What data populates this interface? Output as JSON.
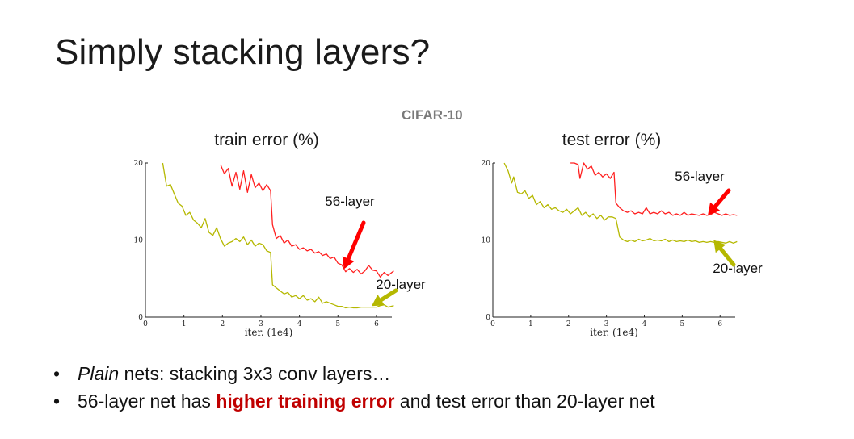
{
  "slide": {
    "title": "Simply stacking layers?",
    "dataset_label": "CIFAR-10",
    "bullets": [
      {
        "parts": [
          {
            "text": "Plain",
            "style": "italic"
          },
          {
            "text": " nets: stacking 3x3 conv layers…",
            "style": "normal"
          }
        ]
      },
      {
        "parts": [
          {
            "text": "56-layer net has ",
            "style": "normal"
          },
          {
            "text": "higher training error",
            "style": "highlight"
          },
          {
            "text": " and test error than 20-layer net",
            "style": "normal"
          }
        ]
      }
    ],
    "highlight_color": "#c00000"
  },
  "chart_data": [
    {
      "type": "line",
      "title": "train error (%)",
      "xlabel": "iter. (1e4)",
      "ylabel": "",
      "xlim": [
        0,
        6.4
      ],
      "ylim": [
        0,
        20
      ],
      "xticks": [
        "0",
        "1",
        "2",
        "3",
        "4",
        "5",
        "6"
      ],
      "yticks": [
        "0",
        "10",
        "20"
      ],
      "grid": false,
      "series": [
        {
          "name": "56-layer",
          "color": "#ff2020",
          "x": [
            1.95,
            2.05,
            2.15,
            2.25,
            2.35,
            2.45,
            2.55,
            2.65,
            2.75,
            2.85,
            2.95,
            3.05,
            3.15,
            3.25,
            3.3,
            3.4,
            3.5,
            3.6,
            3.7,
            3.8,
            3.9,
            4.0,
            4.1,
            4.2,
            4.3,
            4.4,
            4.5,
            4.6,
            4.7,
            4.8,
            4.9,
            5.0,
            5.1,
            5.2,
            5.3,
            5.4,
            5.5,
            5.6,
            5.7,
            5.8,
            5.9,
            6.0,
            6.1,
            6.2,
            6.3,
            6.45
          ],
          "y": [
            19.8,
            18.6,
            19.3,
            17.0,
            18.8,
            16.6,
            19.0,
            16.2,
            18.5,
            16.8,
            17.4,
            16.4,
            17.2,
            16.4,
            12.0,
            10.2,
            10.6,
            9.6,
            10.0,
            9.2,
            9.4,
            8.8,
            9.0,
            8.6,
            8.8,
            8.3,
            8.5,
            8.0,
            8.2,
            7.6,
            7.8,
            7.0,
            6.8,
            5.9,
            6.3,
            5.8,
            6.2,
            5.6,
            6.0,
            6.7,
            6.1,
            6.0,
            5.2,
            5.8,
            5.4,
            6.0
          ]
        },
        {
          "name": "20-layer",
          "color": "#b5b800",
          "x": [
            0.45,
            0.55,
            0.65,
            0.75,
            0.85,
            0.95,
            1.05,
            1.15,
            1.25,
            1.35,
            1.45,
            1.55,
            1.65,
            1.75,
            1.85,
            1.95,
            2.05,
            2.15,
            2.25,
            2.35,
            2.45,
            2.55,
            2.65,
            2.75,
            2.85,
            2.95,
            3.05,
            3.15,
            3.25,
            3.3,
            3.4,
            3.5,
            3.6,
            3.7,
            3.8,
            3.9,
            4.0,
            4.1,
            4.2,
            4.3,
            4.4,
            4.5,
            4.6,
            4.7,
            4.8,
            4.9,
            5.0,
            5.1,
            5.2,
            5.3,
            5.4,
            5.5,
            5.6,
            5.7,
            5.8,
            5.9,
            6.0,
            6.1,
            6.2,
            6.3,
            6.45
          ],
          "y": [
            20.0,
            17.0,
            17.2,
            16.0,
            14.8,
            14.4,
            13.2,
            13.6,
            12.6,
            12.2,
            11.6,
            12.8,
            11.0,
            10.6,
            11.6,
            10.2,
            9.2,
            9.6,
            9.8,
            10.2,
            9.8,
            10.4,
            9.4,
            10.0,
            9.2,
            9.6,
            9.4,
            8.6,
            8.4,
            4.2,
            3.8,
            3.4,
            3.0,
            3.2,
            2.6,
            2.8,
            2.4,
            2.8,
            2.2,
            2.4,
            2.0,
            2.6,
            1.8,
            2.0,
            1.8,
            1.6,
            1.4,
            1.4,
            1.2,
            1.3,
            1.2,
            1.2,
            1.3,
            1.3,
            1.3,
            1.3,
            1.3,
            1.5,
            1.6,
            1.3,
            1.5
          ]
        }
      ],
      "annotations": [
        {
          "text": "56-layer",
          "target_series": "56-layer",
          "arrow_color": "#ff0000"
        },
        {
          "text": "20-layer",
          "target_series": "20-layer",
          "arrow_color": "#b5b800"
        }
      ]
    },
    {
      "type": "line",
      "title": "test error (%)",
      "xlabel": "iter. (1e4)",
      "ylabel": "",
      "xlim": [
        0,
        6.4
      ],
      "ylim": [
        0,
        20
      ],
      "xticks": [
        "0",
        "1",
        "2",
        "3",
        "4",
        "5",
        "6"
      ],
      "yticks": [
        "0",
        "10",
        "20"
      ],
      "grid": false,
      "series": [
        {
          "name": "56-layer",
          "color": "#ff2020",
          "x": [
            2.05,
            2.15,
            2.25,
            2.3,
            2.4,
            2.5,
            2.6,
            2.7,
            2.8,
            2.9,
            3.0,
            3.1,
            3.2,
            3.25,
            3.35,
            3.45,
            3.55,
            3.65,
            3.75,
            3.85,
            3.95,
            4.05,
            4.15,
            4.25,
            4.35,
            4.45,
            4.55,
            4.65,
            4.75,
            4.85,
            4.95,
            5.05,
            5.15,
            5.25,
            5.35,
            5.45,
            5.55,
            5.65,
            5.75,
            5.85,
            5.95,
            6.05,
            6.15,
            6.25,
            6.35,
            6.45
          ],
          "y": [
            20.0,
            20.0,
            19.8,
            18.0,
            20.0,
            19.2,
            19.6,
            18.4,
            18.8,
            18.2,
            18.6,
            18.0,
            18.8,
            14.8,
            14.2,
            13.8,
            13.6,
            13.8,
            13.4,
            13.6,
            13.4,
            14.2,
            13.4,
            13.6,
            13.4,
            13.8,
            13.4,
            13.6,
            13.2,
            13.4,
            13.2,
            13.6,
            13.2,
            13.4,
            13.3,
            13.2,
            13.4,
            13.2,
            13.3,
            13.6,
            13.4,
            13.2,
            13.4,
            13.2,
            13.3,
            13.2
          ]
        },
        {
          "name": "20-layer",
          "color": "#b5b800",
          "x": [
            0.3,
            0.4,
            0.5,
            0.55,
            0.65,
            0.75,
            0.85,
            0.95,
            1.05,
            1.15,
            1.25,
            1.35,
            1.45,
            1.55,
            1.65,
            1.75,
            1.85,
            1.95,
            2.05,
            2.15,
            2.25,
            2.35,
            2.45,
            2.55,
            2.65,
            2.75,
            2.85,
            2.95,
            3.05,
            3.15,
            3.25,
            3.35,
            3.45,
            3.55,
            3.65,
            3.75,
            3.85,
            3.95,
            4.05,
            4.15,
            4.25,
            4.35,
            4.45,
            4.55,
            4.65,
            4.75,
            4.85,
            4.95,
            5.05,
            5.15,
            5.25,
            5.35,
            5.45,
            5.55,
            5.65,
            5.75,
            5.85,
            5.95,
            6.05,
            6.15,
            6.25,
            6.35,
            6.45
          ],
          "y": [
            20.0,
            19.0,
            17.4,
            18.2,
            16.2,
            16.0,
            16.4,
            15.4,
            15.8,
            14.6,
            15.0,
            14.2,
            14.6,
            14.0,
            14.2,
            13.8,
            13.6,
            14.0,
            13.4,
            13.8,
            14.2,
            13.2,
            13.6,
            13.0,
            13.4,
            12.8,
            13.2,
            12.6,
            13.0,
            13.0,
            12.8,
            10.4,
            10.0,
            9.8,
            10.0,
            9.8,
            10.1,
            9.9,
            10.0,
            10.2,
            9.9,
            10.0,
            9.9,
            10.1,
            9.8,
            10.0,
            9.8,
            9.9,
            9.8,
            10.0,
            9.8,
            9.9,
            9.7,
            9.8,
            9.7,
            9.8,
            9.7,
            9.8,
            9.7,
            9.6,
            9.8,
            9.6,
            9.8
          ]
        }
      ],
      "annotations": [
        {
          "text": "56-layer",
          "target_series": "56-layer",
          "arrow_color": "#ff0000"
        },
        {
          "text": "20-layer",
          "target_series": "20-layer",
          "arrow_color": "#b5b800"
        }
      ]
    }
  ]
}
